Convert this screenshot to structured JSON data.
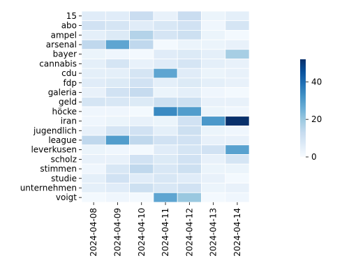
{
  "chart_data": {
    "type": "heatmap",
    "title": "",
    "xlabel": "",
    "ylabel": "",
    "colormap": "Blues",
    "grid_lines": "white",
    "vmin": 0,
    "vmax": 52,
    "colorbar_ticks": [
      0,
      20,
      40
    ],
    "rows": [
      "15",
      "abo",
      "ampel",
      "arsenal",
      "bayer",
      "cannabis",
      "cdu",
      "fdp",
      "galeria",
      "geld",
      "höcke",
      "iran",
      "jugendlich",
      "league",
      "leverkusen",
      "scholz",
      "stimmen",
      "studie",
      "unternehmen",
      "voigt"
    ],
    "columns": [
      "2024-04-08",
      "2024-04-09",
      "2024-04-10",
      "2024-04-11",
      "2024-04-12",
      "2024-04-13",
      "2024-04-14"
    ],
    "values": [
      [
        6,
        6,
        12,
        4,
        12,
        3,
        5
      ],
      [
        10,
        9,
        6,
        8,
        10,
        2,
        9
      ],
      [
        5,
        7,
        16,
        9,
        11,
        3,
        1
      ],
      [
        14,
        28,
        14,
        1,
        3,
        3,
        4
      ],
      [
        3,
        2,
        1,
        6,
        7,
        5,
        18
      ],
      [
        5,
        9,
        4,
        6,
        9,
        5,
        4
      ],
      [
        5,
        5,
        9,
        28,
        6,
        3,
        4
      ],
      [
        6,
        7,
        10,
        5,
        7,
        5,
        4
      ],
      [
        4,
        10,
        13,
        3,
        5,
        2,
        1
      ],
      [
        9,
        8,
        7,
        11,
        11,
        4,
        4
      ],
      [
        2,
        2,
        1,
        34,
        30,
        3,
        2
      ],
      [
        2,
        3,
        4,
        3,
        10,
        31,
        52
      ],
      [
        4,
        9,
        10,
        5,
        11,
        3,
        2
      ],
      [
        14,
        30,
        14,
        10,
        10,
        4,
        4
      ],
      [
        3,
        2,
        1,
        6,
        9,
        10,
        29
      ],
      [
        4,
        4,
        10,
        7,
        10,
        4,
        9
      ],
      [
        2,
        8,
        14,
        8,
        11,
        3,
        3
      ],
      [
        5,
        10,
        6,
        8,
        6,
        4,
        1
      ],
      [
        5,
        6,
        11,
        8,
        10,
        3,
        4
      ],
      [
        1,
        2,
        1,
        28,
        20,
        1,
        2
      ]
    ]
  }
}
